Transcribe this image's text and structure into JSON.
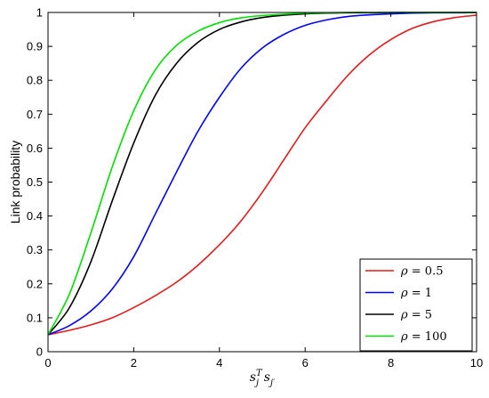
{
  "chart_data": {
    "type": "line",
    "title": "",
    "xlabel_parts": {
      "base": "s",
      "sub": "j",
      "sup": "T",
      "base2": "s",
      "sub2": "j′"
    },
    "ylabel": "Link probability",
    "xlim": [
      0,
      10
    ],
    "ylim": [
      0,
      1
    ],
    "xticks": [
      0,
      2,
      4,
      6,
      8,
      10
    ],
    "yticks": [
      0,
      0.1,
      0.2,
      0.3,
      0.4,
      0.5,
      0.6,
      0.7,
      0.8,
      0.9,
      1
    ],
    "grid": false,
    "legend_position": "bottom-right",
    "x": [
      0,
      0.5,
      1,
      1.5,
      2,
      2.5,
      3,
      3.5,
      4,
      4.5,
      5,
      5.5,
      6,
      6.5,
      7,
      7.5,
      8,
      8.5,
      9,
      9.5,
      10
    ],
    "series": [
      {
        "label_symbol": "ρ",
        "label_value": "= 0.5",
        "color": "#e41a1c",
        "values": [
          0.05,
          0.063,
          0.079,
          0.1,
          0.13,
          0.165,
          0.205,
          0.255,
          0.315,
          0.385,
          0.47,
          0.565,
          0.66,
          0.74,
          0.815,
          0.875,
          0.92,
          0.953,
          0.973,
          0.985,
          0.992
        ]
      },
      {
        "label_symbol": "ρ",
        "label_value": "= 1",
        "color": "#0000ff",
        "values": [
          0.05,
          0.077,
          0.12,
          0.185,
          0.28,
          0.405,
          0.53,
          0.65,
          0.75,
          0.835,
          0.895,
          0.935,
          0.962,
          0.978,
          0.988,
          0.993,
          0.996,
          0.998,
          0.999,
          0.999,
          1.0
        ]
      },
      {
        "label_symbol": "ρ",
        "label_value": "= 5",
        "color": "#000000",
        "values": [
          0.05,
          0.13,
          0.265,
          0.445,
          0.615,
          0.755,
          0.85,
          0.912,
          0.95,
          0.972,
          0.985,
          0.992,
          0.996,
          0.998,
          0.999,
          0.999,
          1.0,
          1.0,
          1.0,
          1.0,
          1.0
        ]
      },
      {
        "label_symbol": "ρ",
        "label_value": "= 100",
        "color": "#00e000",
        "values": [
          0.05,
          0.17,
          0.35,
          0.545,
          0.71,
          0.83,
          0.903,
          0.945,
          0.97,
          0.984,
          0.991,
          0.995,
          0.998,
          0.999,
          1.0,
          1.0,
          1.0,
          1.0,
          1.0,
          1.0,
          1.0
        ]
      }
    ]
  }
}
